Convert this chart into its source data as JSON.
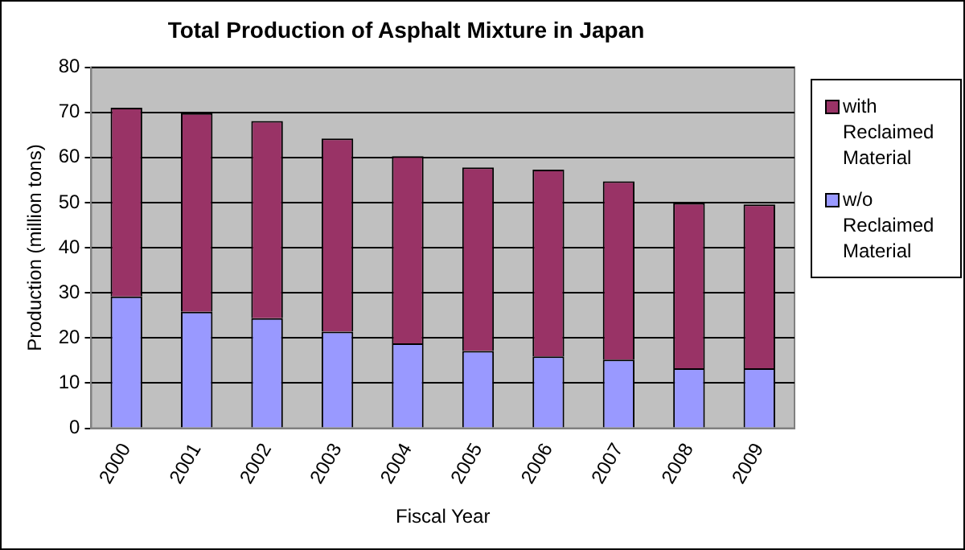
{
  "chart_data": {
    "type": "bar",
    "title": "Total Production of Asphalt Mixture in Japan",
    "xlabel": "Fiscal Year",
    "ylabel": "Production (million tons)",
    "categories": [
      "2000",
      "2001",
      "2002",
      "2003",
      "2004",
      "2005",
      "2006",
      "2007",
      "2008",
      "2009"
    ],
    "series": [
      {
        "name": "w/o Reclaimed Material",
        "color": "#9999ff",
        "values": [
          29.2,
          25.8,
          24.4,
          21.4,
          18.8,
          17.1,
          15.9,
          15.2,
          13.3,
          13.3
        ]
      },
      {
        "name": "with Reclaimed Material",
        "color": "#993366",
        "values": [
          41.8,
          44.0,
          43.7,
          42.8,
          41.5,
          40.7,
          41.4,
          39.5,
          36.6,
          36.3
        ]
      }
    ],
    "stacked": true,
    "ylim": [
      0,
      80
    ],
    "yticks": [
      0,
      10,
      20,
      30,
      40,
      50,
      60,
      70,
      80
    ],
    "grid": "y",
    "legend": "right"
  }
}
